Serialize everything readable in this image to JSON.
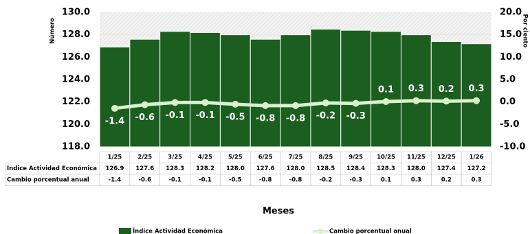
{
  "chart_data": {
    "type": "bar_line",
    "y_label": "Número",
    "y2_label": "Por ciento",
    "x_label": "Meses",
    "categories": [
      "1/25",
      "2/25",
      "3/25",
      "4/25",
      "5/25",
      "6/25",
      "7/25",
      "8/25",
      "9/25",
      "10/25",
      "11/25",
      "12/25",
      "1/26"
    ],
    "series": [
      {
        "name": "Índice Actividad Económica",
        "color": "#1b5e20",
        "type": "bar",
        "values": [
          126.9,
          127.6,
          128.3,
          128.2,
          128.0,
          127.6,
          128.0,
          128.5,
          128.4,
          128.3,
          128.0,
          127.4,
          127.2
        ],
        "value_labels": [
          "126.9",
          "127.6",
          "128.3",
          "128.2",
          "128.0",
          "127.6",
          "128.0",
          "128.5",
          "128.4",
          "128.3",
          "128.0",
          "127.4",
          "127.2"
        ]
      },
      {
        "name": "Cambio porcentual anual",
        "color": "#d9f2cc",
        "type": "line",
        "axis": "y2",
        "values": [
          -1.4,
          -0.6,
          -0.1,
          -0.1,
          -0.5,
          -0.8,
          -0.8,
          -0.2,
          -0.3,
          0.1,
          0.3,
          0.2,
          0.3
        ]
      }
    ],
    "ylim": [
      118,
      130
    ],
    "yticks": [
      {
        "value": 118,
        "label": "118.0"
      },
      {
        "value": 120,
        "label": "120.0"
      },
      {
        "value": 122,
        "label": "122.0"
      },
      {
        "value": 124,
        "label": "124.0"
      },
      {
        "value": 126,
        "label": "126.0"
      },
      {
        "value": 128,
        "label": "128.0"
      },
      {
        "value": 130,
        "label": "130.0"
      }
    ],
    "y2lim": [
      -10,
      20
    ],
    "y2ticks": [
      {
        "value": -10,
        "label": "-10.0"
      },
      {
        "value": -5,
        "label": "-5.0"
      },
      {
        "value": 0,
        "label": "0.0"
      },
      {
        "value": 5,
        "label": "5.0"
      },
      {
        "value": 10,
        "label": "10.0"
      },
      {
        "value": 15,
        "label": "15.0"
      },
      {
        "value": 20,
        "label": "20.0"
      }
    ],
    "legend": "bottom"
  }
}
